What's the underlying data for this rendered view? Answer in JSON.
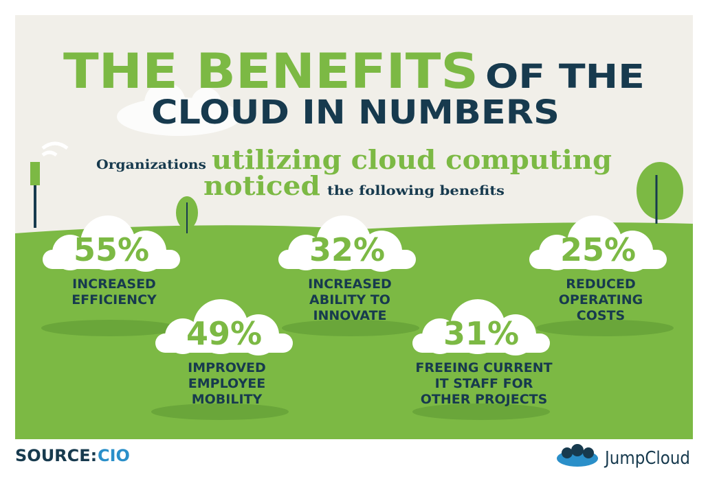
{
  "title": {
    "highlight": "THE BENEFITS",
    "rest": "OF THE",
    "line2": "CLOUD IN NUMBERS"
  },
  "subtitle": {
    "part1": "Organizations",
    "highlight1": "utilizing cloud computing",
    "highlight2": "noticed",
    "part2": "the following benefits"
  },
  "stats": [
    {
      "value": "55%",
      "label": [
        "INCREASED",
        "EFFICIENCY"
      ]
    },
    {
      "value": "32%",
      "label": [
        "INCREASED",
        "ABILITY TO",
        "INNOVATE"
      ]
    },
    {
      "value": "25%",
      "label": [
        "REDUCED",
        "OPERATING",
        "COSTS"
      ]
    },
    {
      "value": "49%",
      "label": [
        "IMPROVED",
        "EMPLOYEE",
        "MOBILITY"
      ]
    },
    {
      "value": "31%",
      "label": [
        "FREEING CURRENT",
        "IT STAFF FOR",
        "OTHER PROJECTS"
      ]
    }
  ],
  "source": {
    "prefix": "SOURCE:",
    "name": "CIO"
  },
  "logo": "JumpCloud"
}
